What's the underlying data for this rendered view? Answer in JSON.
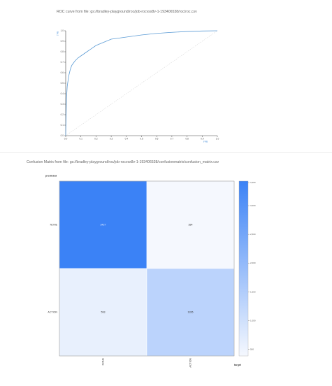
{
  "roc": {
    "title": "ROC curve from file: gs://bradley-playground/roc/job-rocvsx8v-1-193406538/roc/roc.csv",
    "xlabel": "FPR",
    "ylabel": "TPR"
  },
  "confusion": {
    "title": "Confusion Matrix from file: gs://bradley-playground/roc/job-rocvsx8v-1-193406538/confusionmatrix/confusion_matrix.csv",
    "predicted_label": "predicted",
    "target_label": "target"
  },
  "chart_data": [
    {
      "type": "line",
      "title": "",
      "xlabel": "FPR",
      "ylabel": "TPR",
      "xlim": [
        0,
        1
      ],
      "ylim": [
        0,
        1
      ],
      "ticks": [
        "0.0",
        "0.1",
        "0.2",
        "0.3",
        "0.4",
        "0.5",
        "0.6",
        "0.7",
        "0.8",
        "0.9",
        "1.0"
      ],
      "grid": false,
      "series": [
        {
          "color": "#5b9bd5",
          "x": [
            0,
            0.005,
            0.01,
            0.02,
            0.03,
            0.04,
            0.06,
            0.08,
            0.1,
            0.12,
            0.15,
            0.2,
            0.25,
            0.3,
            0.35,
            0.4,
            0.5,
            0.6,
            0.7,
            0.8,
            0.9,
            1.0
          ],
          "y": [
            0,
            0.35,
            0.47,
            0.57,
            0.63,
            0.67,
            0.71,
            0.74,
            0.76,
            0.78,
            0.81,
            0.86,
            0.89,
            0.92,
            0.93,
            0.94,
            0.96,
            0.975,
            0.985,
            0.993,
            0.998,
            1.0
          ]
        },
        {
          "color": "#c8c8c8",
          "dashed": true,
          "x": [
            0,
            1
          ],
          "y": [
            0,
            1
          ]
        }
      ]
    },
    {
      "type": "heatmap",
      "title": "",
      "xlabel": "target",
      "ylabel": "predicted",
      "rows": [
        "NONE",
        "ACTION"
      ],
      "cols": [
        "NONE",
        "ACTION"
      ],
      "values": [
        [
          3427,
          384
        ],
        [
          593,
          1326
        ]
      ],
      "colorbar": {
        "min": 384,
        "max": 3427,
        "ticks": [
          500,
          1000,
          1500,
          2000,
          2500,
          3000,
          3400
        ],
        "tick_labels": [
          "500",
          "1,000",
          "1,500",
          "2,000",
          "2,500",
          "3,000",
          "3,400"
        ],
        "low_color": "#f5f8fe",
        "high_color": "#3b82f6"
      }
    }
  ]
}
